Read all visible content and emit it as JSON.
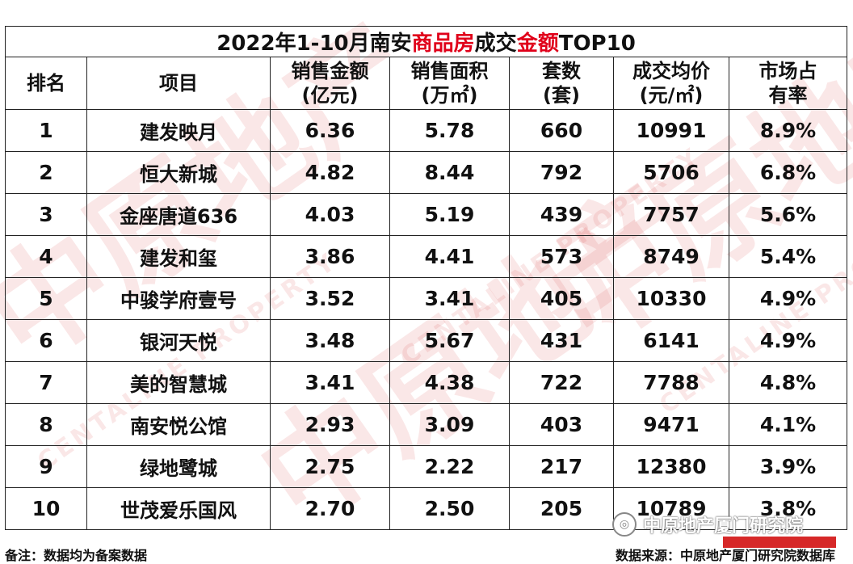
{
  "title": {
    "part1": "2022年1-10月南安",
    "highlight1": "商品房",
    "part2": "成交",
    "highlight2": "金额",
    "part3": "TOP10"
  },
  "headers": {
    "rank": "排名",
    "project": "项目",
    "sales_amount": [
      "销售金额",
      "(亿元)"
    ],
    "sales_area": [
      "销售面积",
      "(万㎡)"
    ],
    "units": [
      "套数",
      "(套)"
    ],
    "avg_price": [
      "成交均价",
      "(元/㎡)"
    ],
    "market_share": [
      "市场占",
      "有率"
    ]
  },
  "rows": [
    {
      "rank": "1",
      "project": "建发映月",
      "amount": "6.36",
      "area": "5.78",
      "units": "660",
      "price": "10991",
      "share": "8.9%"
    },
    {
      "rank": "2",
      "project": "恒大新城",
      "amount": "4.82",
      "area": "8.44",
      "units": "792",
      "price": "5706",
      "share": "6.8%"
    },
    {
      "rank": "3",
      "project": "金座唐道636",
      "amount": "4.03",
      "area": "5.19",
      "units": "439",
      "price": "7757",
      "share": "5.6%"
    },
    {
      "rank": "4",
      "project": "建发和玺",
      "amount": "3.86",
      "area": "4.41",
      "units": "573",
      "price": "8749",
      "share": "5.4%"
    },
    {
      "rank": "5",
      "project": "中骏学府壹号",
      "amount": "3.52",
      "area": "3.41",
      "units": "405",
      "price": "10330",
      "share": "4.9%"
    },
    {
      "rank": "6",
      "project": "银河天悦",
      "amount": "3.48",
      "area": "5.67",
      "units": "431",
      "price": "6141",
      "share": "4.9%"
    },
    {
      "rank": "7",
      "project": "美的智慧城",
      "amount": "3.41",
      "area": "4.38",
      "units": "722",
      "price": "7788",
      "share": "4.8%"
    },
    {
      "rank": "8",
      "project": "南安悦公馆",
      "amount": "2.93",
      "area": "3.09",
      "units": "403",
      "price": "9471",
      "share": "4.1%"
    },
    {
      "rank": "9",
      "project": "绿地鹭城",
      "amount": "2.75",
      "area": "2.22",
      "units": "217",
      "price": "12380",
      "share": "3.9%"
    },
    {
      "rank": "10",
      "project": "世茂爱乐国风",
      "amount": "2.70",
      "area": "2.50",
      "units": "205",
      "price": "10789",
      "share": "3.8%"
    }
  ],
  "footer": {
    "note": "备注：数据均为备案数据",
    "source": "数据来源：中原地产厦门研究院数据库"
  },
  "brand": {
    "name": "中原地产厦门研究院",
    "logo_icon": "wechat-icon"
  },
  "watermark": {
    "text_cn": "中原地产",
    "text_en": "CENTALINE PROPERTY"
  },
  "colors": {
    "highlight": "#e0001a",
    "watermark": "#da4646"
  }
}
